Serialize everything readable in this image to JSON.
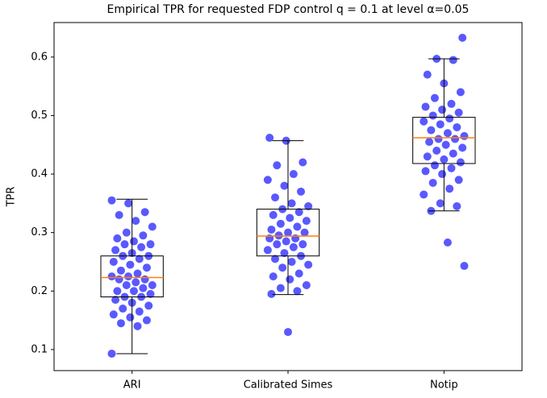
{
  "chart_data": {
    "type": "box",
    "title": "Empirical TPR for requested FDP control q = 0.1 at level α=0.05",
    "y_label": "TPR",
    "categories": [
      "ARI",
      "Calibrated Simes",
      "Notip"
    ],
    "boxes": [
      {
        "whislo": 0.093,
        "q1": 0.19,
        "med": 0.223,
        "q3": 0.26,
        "whishi": 0.357
      },
      {
        "whislo": 0.194,
        "q1": 0.26,
        "med": 0.294,
        "q3": 0.34,
        "whishi": 0.457
      },
      {
        "whislo": 0.337,
        "q1": 0.418,
        "med": 0.462,
        "q3": 0.497,
        "whishi": 0.597
      }
    ],
    "points": [
      [
        0.093,
        0.14,
        0.145,
        0.15,
        0.155,
        0.16,
        0.165,
        0.17,
        0.175,
        0.18,
        0.185,
        0.19,
        0.19,
        0.195,
        0.2,
        0.2,
        0.205,
        0.21,
        0.21,
        0.215,
        0.22,
        0.22,
        0.225,
        0.225,
        0.23,
        0.235,
        0.24,
        0.245,
        0.25,
        0.255,
        0.26,
        0.26,
        0.265,
        0.27,
        0.275,
        0.28,
        0.28,
        0.285,
        0.29,
        0.295,
        0.3,
        0.31,
        0.32,
        0.33,
        0.335,
        0.35,
        0.355
      ],
      [
        0.13,
        0.195,
        0.2,
        0.205,
        0.21,
        0.22,
        0.225,
        0.23,
        0.24,
        0.245,
        0.25,
        0.255,
        0.26,
        0.265,
        0.27,
        0.275,
        0.28,
        0.28,
        0.285,
        0.29,
        0.29,
        0.295,
        0.3,
        0.3,
        0.305,
        0.31,
        0.315,
        0.32,
        0.325,
        0.33,
        0.335,
        0.34,
        0.345,
        0.35,
        0.36,
        0.37,
        0.38,
        0.39,
        0.4,
        0.415,
        0.42,
        0.457,
        0.462
      ],
      [
        0.243,
        0.283,
        0.337,
        0.345,
        0.35,
        0.365,
        0.375,
        0.385,
        0.39,
        0.4,
        0.405,
        0.41,
        0.415,
        0.42,
        0.425,
        0.43,
        0.435,
        0.44,
        0.445,
        0.45,
        0.455,
        0.46,
        0.46,
        0.465,
        0.47,
        0.475,
        0.48,
        0.485,
        0.49,
        0.495,
        0.5,
        0.505,
        0.51,
        0.515,
        0.52,
        0.53,
        0.54,
        0.555,
        0.57,
        0.595,
        0.597,
        0.633
      ]
    ],
    "point_color": "#0000ff",
    "median_color": "#ff7f0e",
    "box_color": "#000000",
    "ylim": [
      0.064,
      0.659
    ],
    "yticks": [
      0.1,
      0.2,
      0.3,
      0.4,
      0.5,
      0.6
    ]
  }
}
